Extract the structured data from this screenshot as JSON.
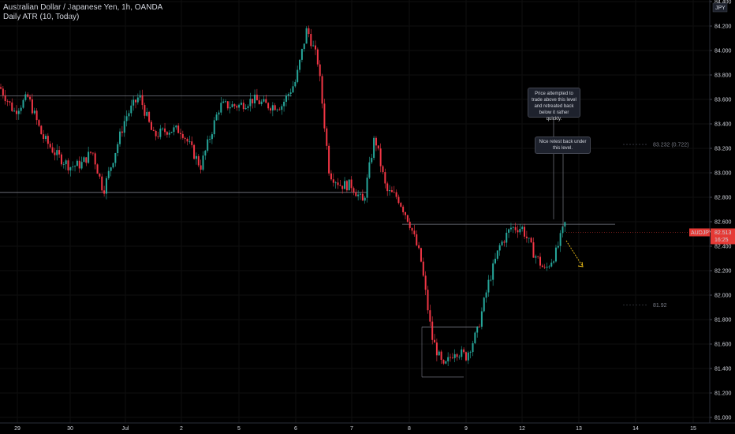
{
  "header": {
    "title": "Australian Dollar / Japanese Yen, 1h, OANDA",
    "indicator": "Daily ATR (10, Today)"
  },
  "currency": "JPY",
  "price_badge": {
    "symbol": "AUDJPY",
    "price": "82.513",
    "countdown": "16:25",
    "color": "#e53935"
  },
  "annotations": [
    {
      "id": "note1",
      "text": "Price attempted to trade above this level and retreated back below it rather quickly."
    },
    {
      "id": "note2",
      "text": "Nice retest back under this level."
    }
  ],
  "atr_levels": [
    {
      "label": "83.232 (0.722)",
      "value": 83.232
    },
    {
      "label": "81.92",
      "value": 81.92
    }
  ],
  "colors": {
    "up": "#26a69a",
    "down": "#f23645",
    "level": "#787b86",
    "arrow": "#f5c518",
    "grid": "#0f0f0f"
  },
  "chart_data": {
    "type": "candlestick",
    "title": "Australian Dollar / Japanese Yen, 1h, OANDA",
    "x_tick_labels": [
      "29",
      "30",
      "Jul",
      "2",
      "5",
      "6",
      "7",
      "8",
      "9",
      "12",
      "13",
      "14",
      "15"
    ],
    "y_tick_labels": [
      "81.000",
      "81.200",
      "81.400",
      "81.600",
      "81.800",
      "82.000",
      "82.200",
      "82.400",
      "82.600",
      "82.800",
      "83.000",
      "83.200",
      "83.400",
      "83.600",
      "83.800",
      "84.000",
      "84.200",
      "84.400"
    ],
    "ylim": [
      81.0,
      84.45
    ],
    "price_path": [
      [
        "29",
        83.7
      ],
      [
        "29",
        83.5
      ],
      [
        "29",
        83.62
      ],
      [
        "29",
        83.3
      ],
      [
        "29",
        83.15
      ],
      [
        "30",
        83.05
      ],
      [
        "30",
        83.07
      ],
      [
        "30",
        83.18
      ],
      [
        "30",
        82.85
      ],
      [
        "30",
        83.15
      ],
      [
        "Jul",
        83.45
      ],
      [
        "Jul",
        83.63
      ],
      [
        "Jul",
        83.3
      ],
      [
        "Jul",
        83.35
      ],
      [
        "2",
        83.35
      ],
      [
        "2",
        83.05
      ],
      [
        "2",
        83.55
      ],
      [
        "5",
        83.55
      ],
      [
        "5",
        83.6
      ],
      [
        "5",
        83.55
      ],
      [
        "5",
        83.55
      ],
      [
        "6",
        83.75
      ],
      [
        "6",
        84.18
      ],
      [
        "6",
        83.9
      ],
      [
        "6",
        83.0
      ],
      [
        "6",
        82.9
      ],
      [
        "7",
        82.9
      ],
      [
        "7",
        82.75
      ],
      [
        "7",
        83.3
      ],
      [
        "7",
        82.85
      ],
      [
        "7",
        82.8
      ],
      [
        "8",
        82.6
      ],
      [
        "8",
        82.3
      ],
      [
        "8",
        81.65
      ],
      [
        "8",
        81.4
      ],
      [
        "8",
        81.55
      ],
      [
        "9",
        81.5
      ],
      [
        "9",
        81.7
      ],
      [
        "9",
        82.1
      ],
      [
        "9",
        82.4
      ],
      [
        "9",
        82.55
      ],
      [
        "12",
        82.55
      ],
      [
        "12",
        82.35
      ],
      [
        "12",
        82.2
      ],
      [
        "12",
        82.35
      ],
      [
        "12",
        82.65
      ],
      [
        "13",
        82.45
      ],
      [
        "13",
        82.55
      ],
      [
        "13",
        82.51
      ]
    ],
    "horizontal_levels": [
      83.63,
      82.84,
      82.58,
      81.74,
      81.33
    ],
    "last_price": 82.513
  }
}
